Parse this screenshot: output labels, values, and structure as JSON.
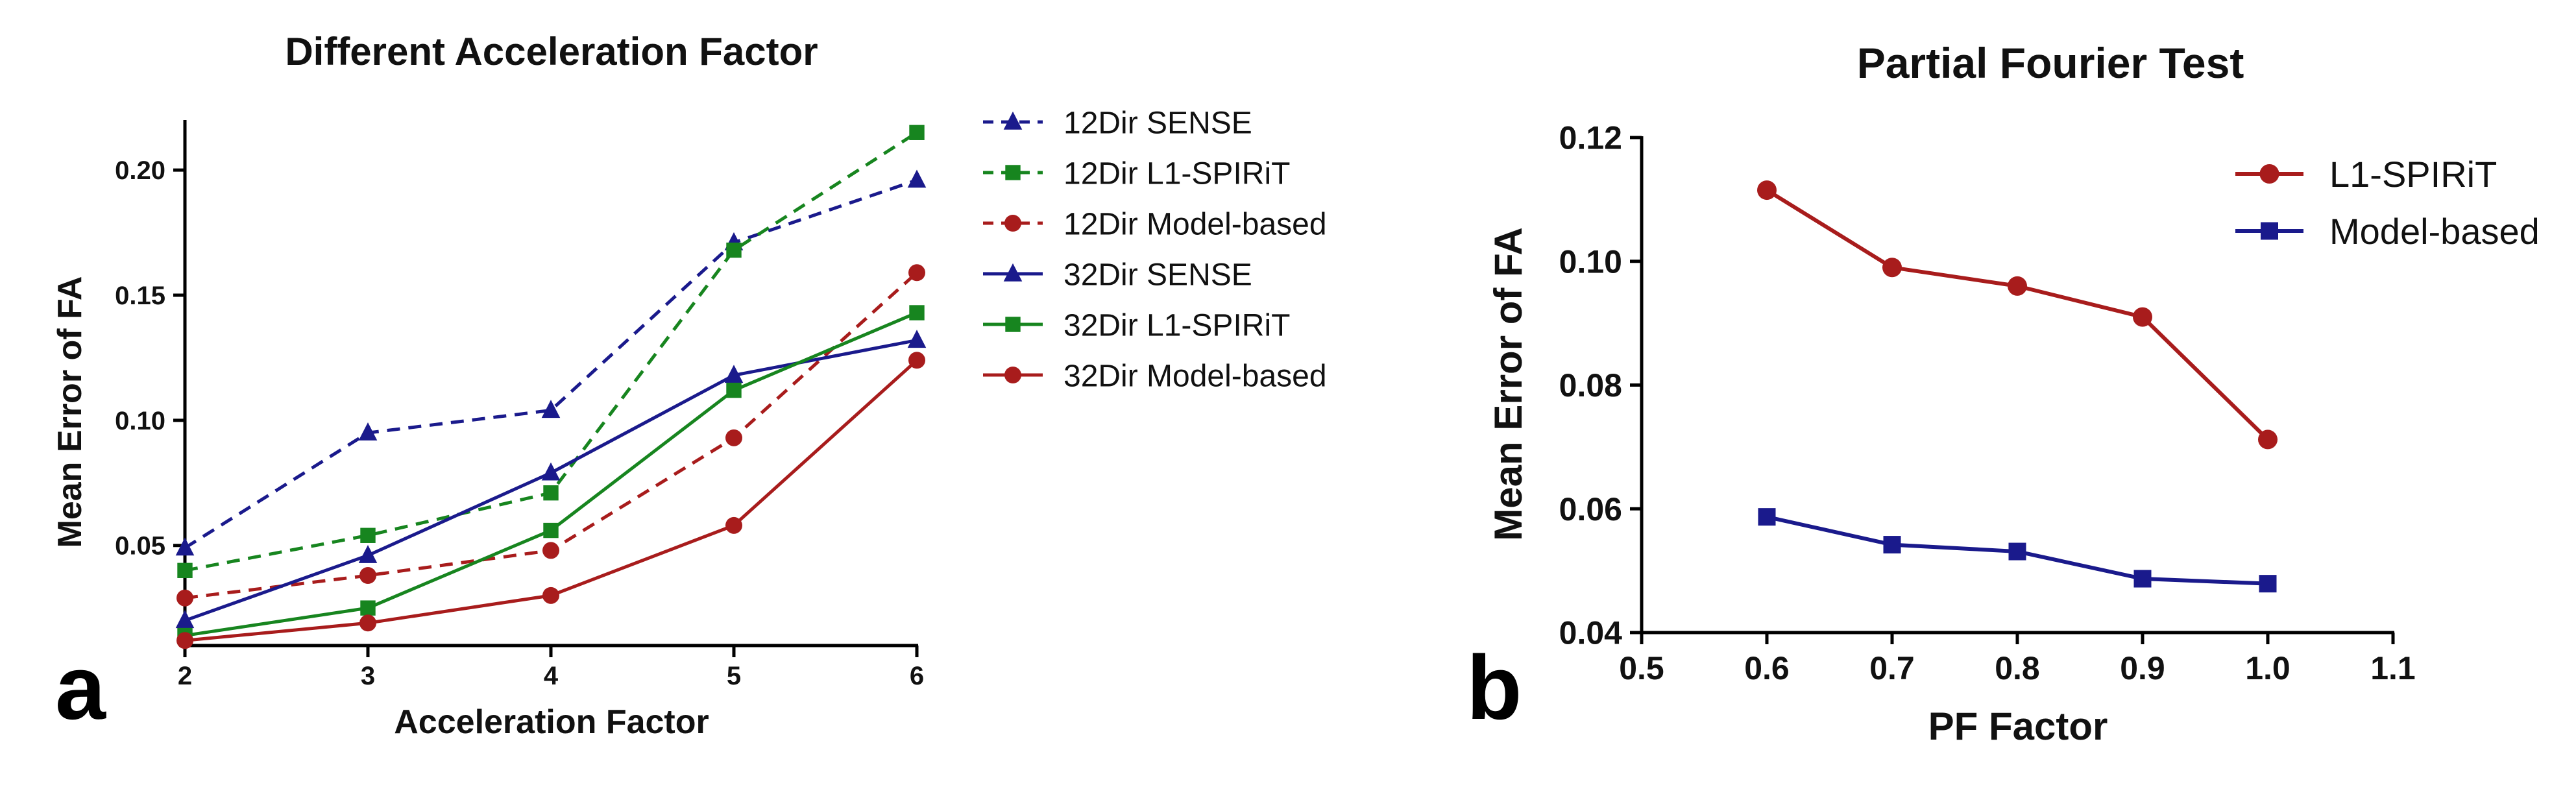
{
  "chart_data": [
    {
      "panel_label": "a",
      "type": "line",
      "title": "Different Acceleration Factor",
      "xlabel": "Acceleration Factor",
      "ylabel": "Mean Error of FA",
      "xlim": [
        2,
        6
      ],
      "ylim": [
        0.01,
        0.22
      ],
      "x_ticks": [
        2,
        3,
        4,
        5,
        6
      ],
      "x_tick_labels": [
        "2",
        "3",
        "4",
        "5",
        "6"
      ],
      "y_ticks": [
        0.05,
        0.1,
        0.15,
        0.2
      ],
      "y_tick_labels": [
        "0.05",
        "0.10",
        "0.15",
        "0.20"
      ],
      "grid": false,
      "legend_position": "outside-right",
      "x": [
        2,
        3,
        4,
        5,
        6
      ],
      "series": [
        {
          "name": "12Dir SENSE",
          "values": [
            0.049,
            0.095,
            0.104,
            0.171,
            0.196
          ],
          "color": "#1a1a8c",
          "marker": "triangle",
          "dash": "dashed"
        },
        {
          "name": "12Dir L1-SPIRiT",
          "values": [
            0.04,
            0.054,
            0.071,
            0.168,
            0.215
          ],
          "color": "#17851f",
          "marker": "square",
          "dash": "dashed"
        },
        {
          "name": "12Dir Model-based",
          "values": [
            0.029,
            0.038,
            0.048,
            0.093,
            0.159
          ],
          "color": "#a81c1c",
          "marker": "circle",
          "dash": "dashed"
        },
        {
          "name": "32Dir SENSE",
          "values": [
            0.02,
            0.046,
            0.079,
            0.118,
            0.132
          ],
          "color": "#1a1a8c",
          "marker": "triangle",
          "dash": "solid"
        },
        {
          "name": "32Dir L1-SPIRiT",
          "values": [
            0.014,
            0.025,
            0.056,
            0.112,
            0.143
          ],
          "color": "#17851f",
          "marker": "square",
          "dash": "solid"
        },
        {
          "name": "32Dir Model-based",
          "values": [
            0.012,
            0.019,
            0.03,
            0.058,
            0.124
          ],
          "color": "#a81c1c",
          "marker": "circle",
          "dash": "solid"
        }
      ]
    },
    {
      "panel_label": "b",
      "type": "line",
      "title": "Partial Fourier Test",
      "xlabel": "PF Factor",
      "ylabel": "Mean Error of FA",
      "xlim": [
        0.5,
        1.1
      ],
      "ylim": [
        0.04,
        0.12
      ],
      "x_ticks": [
        0.5,
        0.6,
        0.7,
        0.8,
        0.9,
        1.0,
        1.1
      ],
      "x_tick_labels": [
        "0.5",
        "0.6",
        "0.7",
        "0.8",
        "0.9",
        "1.0",
        "1.1"
      ],
      "y_ticks": [
        0.04,
        0.06,
        0.08,
        0.1,
        0.12
      ],
      "y_tick_labels": [
        "0.04",
        "0.06",
        "0.08",
        "0.10",
        "0.12"
      ],
      "grid": false,
      "legend_position": "top-right",
      "x": [
        0.6,
        0.7,
        0.8,
        0.9,
        1.0
      ],
      "series": [
        {
          "name": "L1-SPIRiT",
          "values": [
            0.1115,
            0.099,
            0.096,
            0.091,
            0.0712
          ],
          "color": "#a81c1c",
          "marker": "circle",
          "dash": "solid"
        },
        {
          "name": "Model-based",
          "values": [
            0.0587,
            0.0542,
            0.0531,
            0.0487,
            0.0479
          ],
          "color": "#1a1a8c",
          "marker": "square",
          "dash": "solid"
        }
      ]
    }
  ]
}
